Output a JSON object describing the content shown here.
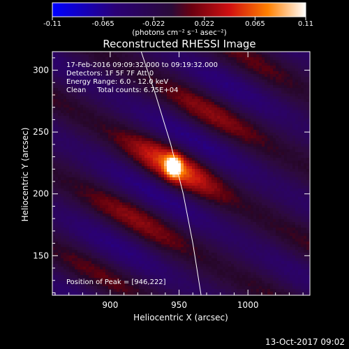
{
  "chart_data": {
    "type": "heatmap",
    "title": "Reconstructed RHESSI Image",
    "xlabel": "Heliocentric X (arcsec)",
    "ylabel": "Heliocentric Y (arcsec)",
    "xlim": [
      858,
      1045
    ],
    "ylim": [
      118,
      315
    ],
    "x_ticks": [
      900,
      950,
      1000
    ],
    "y_ticks": [
      150,
      200,
      250,
      300
    ],
    "grid": false,
    "annotations": [
      "17-Feb-2016 09:09:32.000 to 09:19:32.000",
      "Detectors: 1F 5F 7F Att 0",
      "Energy Range: 6.0 - 12.0 keV",
      "Clean     Total counts: 6.75E+04"
    ],
    "peak_label": "Position of Peak = [946,222]",
    "peak": [
      946,
      222
    ],
    "colorbar": {
      "ticks": [
        "-0.11",
        "-0.065",
        "-0.022",
        "0.022",
        "0.065",
        "0.11"
      ],
      "range": [
        -0.11,
        0.11
      ],
      "units": "(photons cm⁻² s⁻¹ asec⁻²)"
    },
    "timestamp": "13-Oct-2017 09:02"
  }
}
